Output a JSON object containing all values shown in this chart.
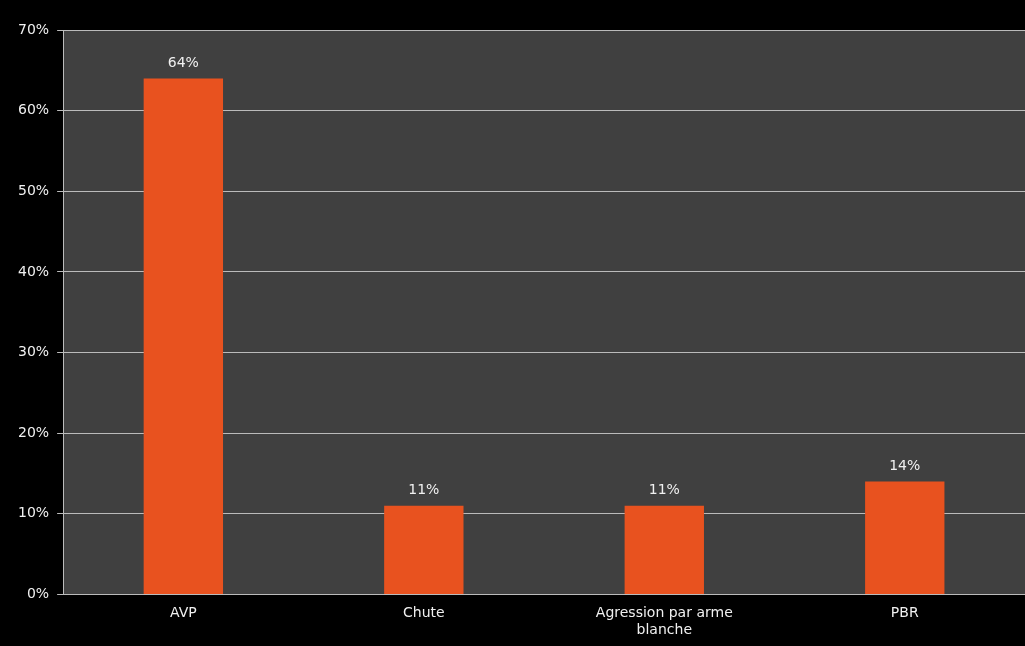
{
  "chart_data": {
    "type": "bar",
    "categories": [
      "AVP",
      "Chute",
      "Agression par arme blanche",
      "PBR"
    ],
    "values": [
      64,
      11,
      11,
      14
    ],
    "color": "#e8521f",
    "value_labels": [
      "64%",
      "11%",
      "11%",
      "14%"
    ],
    "ylim": [
      0,
      70
    ],
    "yticks": [
      {
        "value": 0,
        "label": "0%"
      },
      {
        "value": 10,
        "label": "10%"
      },
      {
        "value": 20,
        "label": "20%"
      },
      {
        "value": 30,
        "label": "30%"
      },
      {
        "value": 40,
        "label": "40%"
      },
      {
        "value": 50,
        "label": "50%"
      },
      {
        "value": 60,
        "label": "60%"
      },
      {
        "value": 70,
        "label": "70%"
      }
    ],
    "grid": "y",
    "legend": false
  }
}
